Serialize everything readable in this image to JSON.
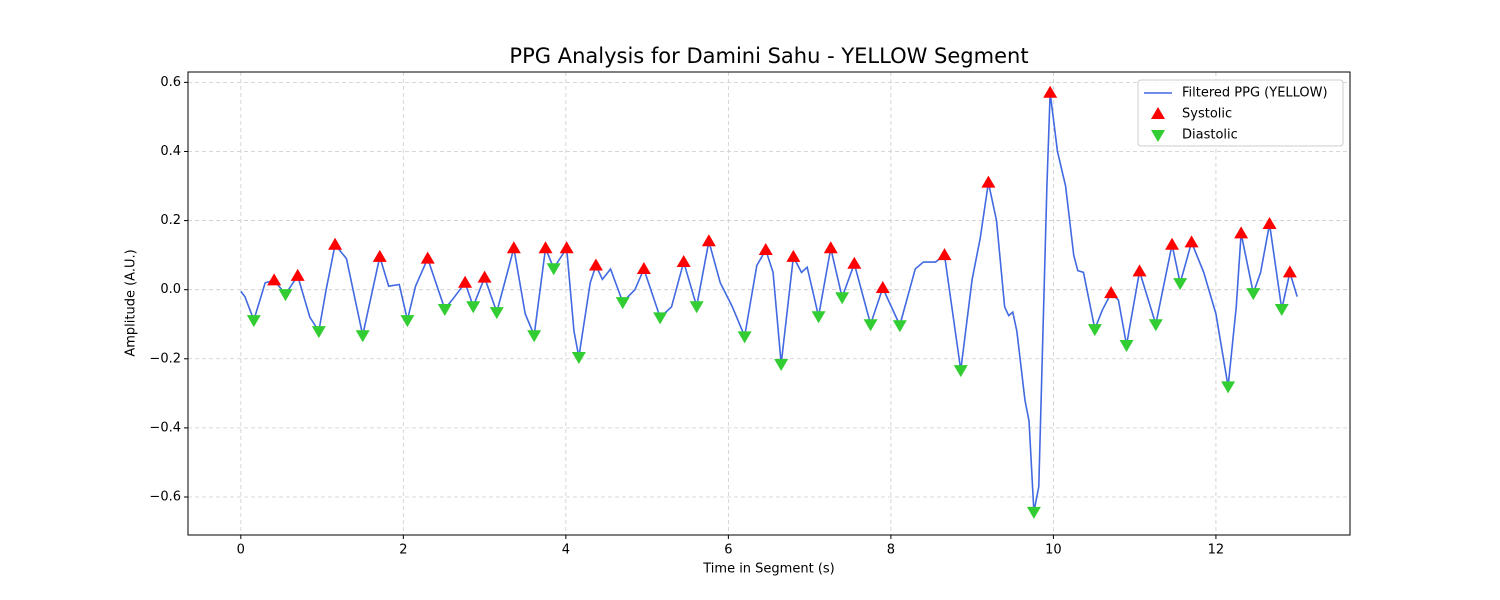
{
  "chart_data": {
    "type": "line",
    "title": "PPG Analysis for Damini Sahu - YELLOW Segment",
    "xlabel": "Time in Segment (s)",
    "ylabel": "Amplitude (A.U.)",
    "xlim": [
      -0.65,
      13.65
    ],
    "ylim": [
      -0.71,
      0.63
    ],
    "xticks": [
      0,
      2,
      4,
      6,
      8,
      10,
      12
    ],
    "yticks": [
      {
        "value": -0.6,
        "label": "−0.6"
      },
      {
        "value": -0.4,
        "label": "−0.4"
      },
      {
        "value": -0.2,
        "label": "−0.2"
      },
      {
        "value": 0,
        "label": "0.0"
      },
      0.2,
      0.4,
      0.6
    ],
    "grid": true,
    "legend": "upper right",
    "series": [
      {
        "name": "Filtered PPG (YELLOW)",
        "color": "#4169e1",
        "marker": "line",
        "x": [
          0,
          0.05,
          0.16,
          0.3,
          0.41,
          0.55,
          0.7,
          0.85,
          0.96,
          1.05,
          1.16,
          1.3,
          1.5,
          1.71,
          1.82,
          1.95,
          2.05,
          2.15,
          2.3,
          2.51,
          2.6,
          2.76,
          2.86,
          3.0,
          3.15,
          3.36,
          3.5,
          3.61,
          3.75,
          3.85,
          4.01,
          4.1,
          4.16,
          4.3,
          4.37,
          4.45,
          4.55,
          4.7,
          4.85,
          4.96,
          5.16,
          5.3,
          5.45,
          5.61,
          5.76,
          5.9,
          6.05,
          6.2,
          6.35,
          6.46,
          6.55,
          6.65,
          6.8,
          6.9,
          6.97,
          7.11,
          7.26,
          7.4,
          7.55,
          7.75,
          7.9,
          8.11,
          8.3,
          8.4,
          8.55,
          8.66,
          8.86,
          9.0,
          9.1,
          9.2,
          9.3,
          9.4,
          9.45,
          9.5,
          9.55,
          9.65,
          9.7,
          9.76,
          9.82,
          9.92,
          9.96,
          10.05,
          10.15,
          10.25,
          10.3,
          10.37,
          10.51,
          10.6,
          10.71,
          10.8,
          10.9,
          11.06,
          11.26,
          11.46,
          11.56,
          11.7,
          11.85,
          12.0,
          12.15,
          12.25,
          12.31,
          12.46,
          12.55,
          12.66,
          12.81,
          12.91,
          13.0
        ],
        "values": [
          -0.005,
          -0.02,
          -0.088,
          0.02,
          0.027,
          -0.013,
          0.04,
          -0.08,
          -0.12,
          0.0,
          0.13,
          0.09,
          -0.132,
          0.095,
          0.01,
          0.015,
          -0.088,
          0.01,
          0.09,
          -0.056,
          -0.03,
          0.02,
          -0.048,
          0.035,
          -0.065,
          0.12,
          -0.07,
          -0.132,
          0.12,
          0.062,
          0.12,
          -0.12,
          -0.195,
          0.02,
          0.07,
          0.03,
          0.06,
          -0.036,
          0.0,
          0.06,
          -0.08,
          -0.05,
          0.08,
          -0.048,
          0.14,
          0.02,
          -0.05,
          -0.135,
          0.07,
          0.115,
          0.05,
          -0.215,
          0.095,
          0.05,
          0.065,
          -0.077,
          0.12,
          -0.022,
          0.075,
          -0.1,
          0.005,
          -0.103,
          0.06,
          0.08,
          0.08,
          0.1,
          -0.233,
          0.03,
          0.15,
          0.31,
          0.2,
          -0.05,
          -0.075,
          -0.065,
          -0.12,
          -0.32,
          -0.38,
          -0.643,
          -0.57,
          0.3,
          0.57,
          0.4,
          0.3,
          0.1,
          0.055,
          0.05,
          -0.114,
          -0.06,
          -0.01,
          -0.03,
          -0.16,
          0.053,
          -0.1,
          0.13,
          0.019,
          0.137,
          0.05,
          -0.07,
          -0.28,
          -0.05,
          0.163,
          -0.01,
          0.05,
          0.19,
          -0.056,
          0.05,
          -0.02
        ]
      },
      {
        "name": "Systolic",
        "color": "#ff0000",
        "marker": "triangle-up",
        "x": [
          0.41,
          0.7,
          1.16,
          1.71,
          2.3,
          2.76,
          3.0,
          3.36,
          3.75,
          4.01,
          4.37,
          4.96,
          5.45,
          5.76,
          6.46,
          6.8,
          7.26,
          7.55,
          7.9,
          8.66,
          9.2,
          9.96,
          10.71,
          11.06,
          11.46,
          11.7,
          12.31,
          12.66,
          12.91
        ],
        "values": [
          0.027,
          0.04,
          0.13,
          0.095,
          0.09,
          0.02,
          0.035,
          0.12,
          0.12,
          0.12,
          0.07,
          0.06,
          0.08,
          0.14,
          0.115,
          0.095,
          0.12,
          0.075,
          0.005,
          0.1,
          0.31,
          0.57,
          -0.01,
          0.053,
          0.13,
          0.137,
          0.163,
          0.19,
          0.05
        ]
      },
      {
        "name": "Diastolic",
        "color": "#32cd32",
        "marker": "triangle-down",
        "x": [
          0.16,
          0.55,
          0.96,
          1.5,
          2.05,
          2.51,
          2.86,
          3.15,
          3.61,
          3.85,
          4.16,
          4.7,
          5.16,
          5.61,
          6.2,
          6.65,
          7.11,
          7.4,
          7.75,
          8.11,
          8.86,
          9.76,
          10.51,
          10.9,
          11.26,
          11.56,
          12.15,
          12.46,
          12.81
        ],
        "values": [
          -0.088,
          -0.013,
          -0.12,
          -0.132,
          -0.088,
          -0.056,
          -0.048,
          -0.065,
          -0.132,
          0.062,
          -0.195,
          -0.036,
          -0.08,
          -0.048,
          -0.135,
          -0.215,
          -0.077,
          -0.022,
          -0.1,
          -0.103,
          -0.233,
          -0.643,
          -0.114,
          -0.16,
          -0.1,
          0.019,
          -0.28,
          -0.01,
          -0.056
        ]
      }
    ]
  }
}
